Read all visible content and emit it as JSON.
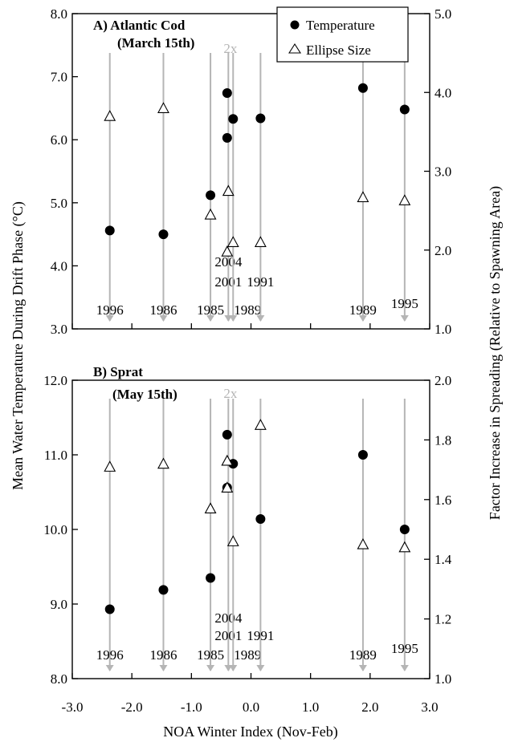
{
  "chart_data": [
    {
      "type": "scatter",
      "panel_title": "A) Atlantic Cod",
      "panel_subtitle": "(March 15th)",
      "xlabel": "NOA Winter Index (Nov-Feb)",
      "ylabel": "Mean Water Temperature During Drift Phase (°C)",
      "ylabel_right": "Factor Increase in Spreading  (Relative to Spawning Area)",
      "xlim": [
        -3.0,
        3.0
      ],
      "ylim": [
        3.0,
        8.0
      ],
      "ylim_right": [
        1.0,
        5.0
      ],
      "yticks": [
        "3.0",
        "4.0",
        "5.0",
        "6.0",
        "7.0",
        "8.0"
      ],
      "yticks_right": [
        "1.0",
        "2.0",
        "3.0",
        "4.0",
        "5.0"
      ],
      "legend_position": "top-right",
      "twox_label": "2x",
      "twox_x": -0.38,
      "year_lines": [
        {
          "x": -2.37,
          "year": "1996"
        },
        {
          "x": -1.47,
          "year": "1986"
        },
        {
          "x": -0.68,
          "year": "1985"
        },
        {
          "x": -0.38,
          "year": "2004"
        },
        {
          "x": -0.38,
          "year": "2001"
        },
        {
          "x": -0.3,
          "year": "1989"
        },
        {
          "x": 0.16,
          "year": "1991"
        },
        {
          "x": 1.88,
          "year": "1989"
        },
        {
          "x": 2.58,
          "year": "1995"
        }
      ],
      "series": [
        {
          "name": "Temperature",
          "marker": "filled-circle",
          "axis": "left",
          "points": [
            [
              -2.37,
              4.56
            ],
            [
              -1.47,
              4.5
            ],
            [
              -0.68,
              5.12
            ],
            [
              -0.4,
              6.74
            ],
            [
              -0.4,
              6.03
            ],
            [
              -0.3,
              6.33
            ],
            [
              0.16,
              6.34
            ],
            [
              1.88,
              6.82
            ],
            [
              2.58,
              6.48
            ]
          ]
        },
        {
          "name": "Ellipse Size",
          "marker": "open-triangle",
          "axis": "right",
          "points": [
            [
              -2.37,
              3.7
            ],
            [
              -1.47,
              3.8
            ],
            [
              -0.68,
              2.45
            ],
            [
              -0.38,
              2.75
            ],
            [
              -0.4,
              1.98
            ],
            [
              -0.3,
              2.1
            ],
            [
              0.16,
              2.1
            ],
            [
              1.88,
              2.67
            ],
            [
              2.58,
              2.63
            ]
          ]
        }
      ]
    },
    {
      "type": "scatter",
      "panel_title": "B) Sprat",
      "panel_subtitle": "(May 15th)",
      "xlabel": "NOA Winter Index (Nov-Feb)",
      "ylim": [
        8.0,
        12.0
      ],
      "ylim_right": [
        1.0,
        2.0
      ],
      "yticks": [
        "8.0",
        "9.0",
        "10.0",
        "11.0",
        "12.0"
      ],
      "yticks_right": [
        "1.0",
        "1.2",
        "1.4",
        "1.6",
        "1.8",
        "2.0"
      ],
      "xticks": [
        "-3.0",
        "-2.0",
        "-1.0",
        "0.0",
        "1.0",
        "2.0",
        "3.0"
      ],
      "twox_label": "2x",
      "twox_x": -0.38,
      "year_lines": [
        {
          "x": -2.37,
          "year": "1996"
        },
        {
          "x": -1.47,
          "year": "1986"
        },
        {
          "x": -0.68,
          "year": "1985"
        },
        {
          "x": -0.38,
          "year": "2004"
        },
        {
          "x": -0.38,
          "year": "2001"
        },
        {
          "x": -0.3,
          "year": "1989"
        },
        {
          "x": 0.16,
          "year": "1991"
        },
        {
          "x": 1.88,
          "year": "1989"
        },
        {
          "x": 2.58,
          "year": "1995"
        }
      ],
      "series": [
        {
          "name": "Temperature",
          "marker": "filled-circle",
          "axis": "left",
          "points": [
            [
              -2.37,
              8.93
            ],
            [
              -1.47,
              9.19
            ],
            [
              -0.68,
              9.35
            ],
            [
              -0.4,
              11.27
            ],
            [
              -0.4,
              10.56
            ],
            [
              -0.3,
              10.88
            ],
            [
              0.16,
              10.14
            ],
            [
              1.88,
              11.0
            ],
            [
              2.58,
              10.0
            ]
          ]
        },
        {
          "name": "Ellipse Size",
          "marker": "open-triangle",
          "axis": "right",
          "points": [
            [
              -2.37,
              1.71
            ],
            [
              -1.47,
              1.72
            ],
            [
              -0.68,
              1.57
            ],
            [
              -0.4,
              1.73
            ],
            [
              -0.4,
              1.64
            ],
            [
              -0.3,
              1.46
            ],
            [
              0.16,
              1.85
            ],
            [
              1.88,
              1.45
            ],
            [
              2.58,
              1.44
            ]
          ]
        }
      ]
    }
  ],
  "legend": {
    "temperature": "Temperature",
    "ellipse": "Ellipse Size"
  },
  "xticks": [
    "-3.0",
    "-2.0",
    "-1.0",
    "0.0",
    "1.0",
    "2.0",
    "3.0"
  ]
}
